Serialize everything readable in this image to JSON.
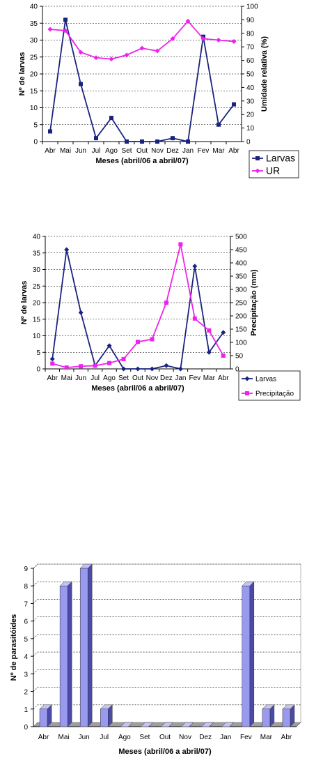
{
  "chart_data": [
    {
      "type": "line",
      "categories": [
        "Abr",
        "Mai",
        "Jun",
        "Jul",
        "Ago",
        "Set",
        "Out",
        "Nov",
        "Dez",
        "Jan",
        "Fev",
        "Mar",
        "Abr"
      ],
      "xlabel": "Meses (abril/06 a abril/07)",
      "ylabel": "Nº de larvas",
      "y2label": "Umidade relativa (%)",
      "ylim": [
        0,
        40
      ],
      "yticks": [
        0,
        5,
        10,
        15,
        20,
        25,
        30,
        35,
        40
      ],
      "y2lim": [
        0,
        100
      ],
      "y2ticks": [
        0,
        10,
        20,
        30,
        40,
        50,
        60,
        70,
        80,
        90,
        100
      ],
      "grid": true,
      "legend_position": "bottom-right",
      "series": [
        {
          "name": "Larvas",
          "axis": "left",
          "color": "#1a237e",
          "marker": "square",
          "values": [
            3,
            36,
            17,
            1,
            7,
            0,
            0,
            0,
            1,
            0,
            31,
            5,
            11
          ]
        },
        {
          "name": "UR",
          "axis": "right",
          "color": "#ee22ee",
          "marker": "diamond",
          "values": [
            83,
            82,
            66,
            62,
            61,
            64,
            69,
            67,
            76,
            89,
            76,
            75,
            74
          ]
        }
      ]
    },
    {
      "type": "line",
      "categories": [
        "Abr",
        "Mai",
        "Jun",
        "Jul",
        "Ago",
        "Set",
        "Out",
        "Nov",
        "Dez",
        "Jan",
        "Fev",
        "Mar",
        "Abr"
      ],
      "xlabel": "Meses (abril/06 a abril/07)",
      "ylabel": "Nº de larvas",
      "y2label": "Precipitação (mm)",
      "ylim": [
        0,
        40
      ],
      "yticks": [
        0,
        5,
        10,
        15,
        20,
        25,
        30,
        35,
        40
      ],
      "y2lim": [
        0,
        500
      ],
      "y2ticks": [
        0,
        50,
        100,
        150,
        200,
        250,
        300,
        350,
        400,
        450,
        500
      ],
      "grid": true,
      "legend_position": "bottom-right",
      "series": [
        {
          "name": "Larvas",
          "axis": "left",
          "color": "#1a237e",
          "marker": "diamond",
          "values": [
            3,
            36,
            17,
            1,
            7,
            0,
            0,
            0,
            1,
            0,
            31,
            5,
            11
          ]
        },
        {
          "name": "Precipitação",
          "axis": "right",
          "color": "#ee22ee",
          "marker": "square",
          "values": [
            20,
            5,
            10,
            12,
            22,
            37,
            102,
            112,
            250,
            470,
            190,
            145,
            50
          ]
        }
      ]
    },
    {
      "type": "bar",
      "categories": [
        "Abr",
        "Mai",
        "Jun",
        "Jul",
        "Ago",
        "Set",
        "Out",
        "Nov",
        "Dez",
        "Jan",
        "Fev",
        "Mar",
        "Abr"
      ],
      "values": [
        1,
        8,
        9,
        1,
        0,
        0,
        0,
        0,
        0,
        0,
        8,
        1,
        1
      ],
      "xlabel": "Meses (abril/06 a abril/07)",
      "ylabel": "Nº de parasitóides",
      "ylim": [
        0,
        9
      ],
      "yticks": [
        0,
        1,
        2,
        3,
        4,
        5,
        6,
        7,
        8,
        9
      ],
      "grid": true,
      "color": "#9999ee"
    }
  ]
}
